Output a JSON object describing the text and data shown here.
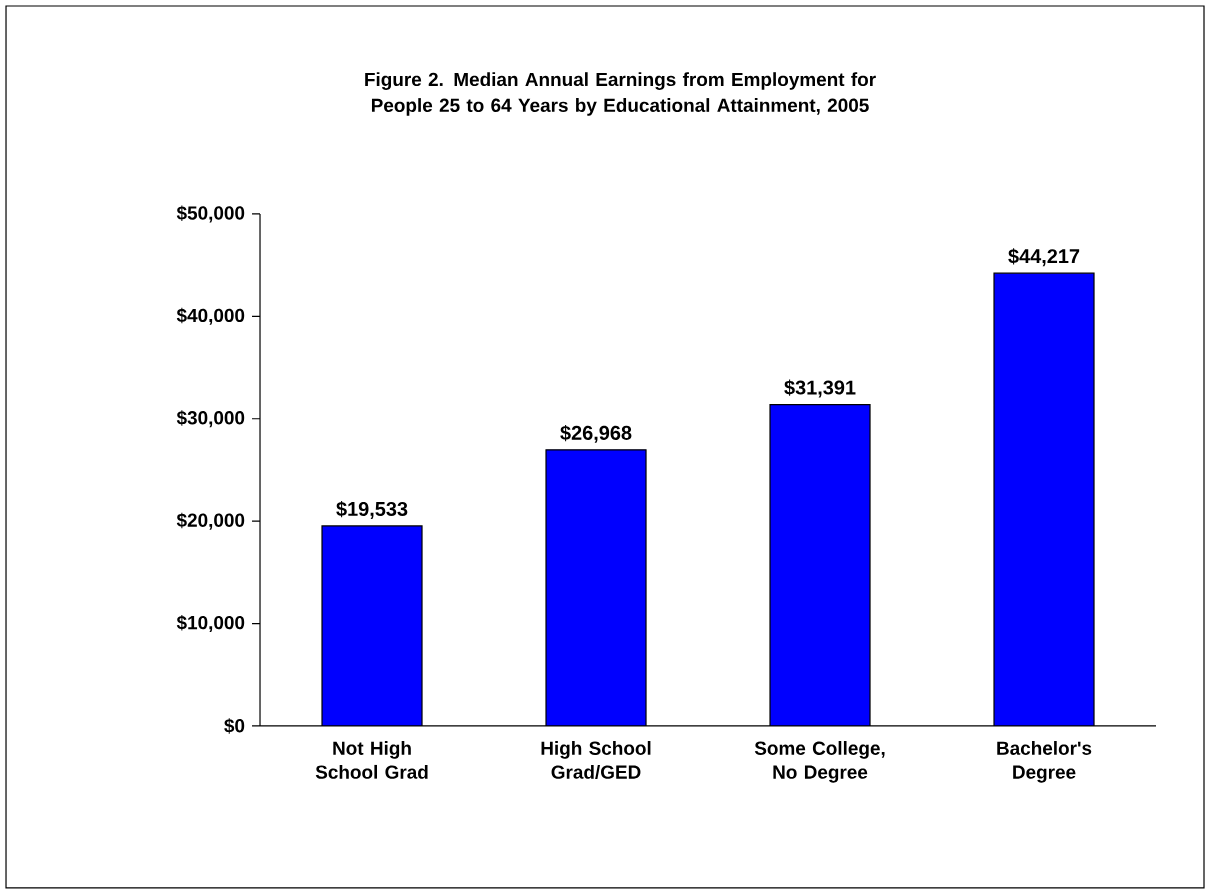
{
  "chart_data": {
    "type": "bar",
    "title": "Figure 2. Median Annual Earnings from Employment for People 25 to 64 Years by Educational Attainment, 2005",
    "categories": [
      "Not High School Grad",
      "High School Grad/GED",
      "Some College, No Degree",
      "Bachelor's Degree"
    ],
    "values": [
      19533,
      26968,
      31391,
      44217
    ],
    "value_labels": [
      "$19,533",
      "$26,968",
      "$31,391",
      "$44,217"
    ],
    "color": "#0000ff",
    "ylim": [
      0,
      50000
    ],
    "yticks": [
      {
        "value": 0,
        "label": "$0"
      },
      {
        "value": 10000,
        "label": "$10,000"
      },
      {
        "value": 20000,
        "label": "$20,000"
      },
      {
        "value": 30000,
        "label": "$30,000"
      },
      {
        "value": 40000,
        "label": "$40,000"
      },
      {
        "value": 50000,
        "label": "$50,000"
      }
    ],
    "grid": false
  }
}
